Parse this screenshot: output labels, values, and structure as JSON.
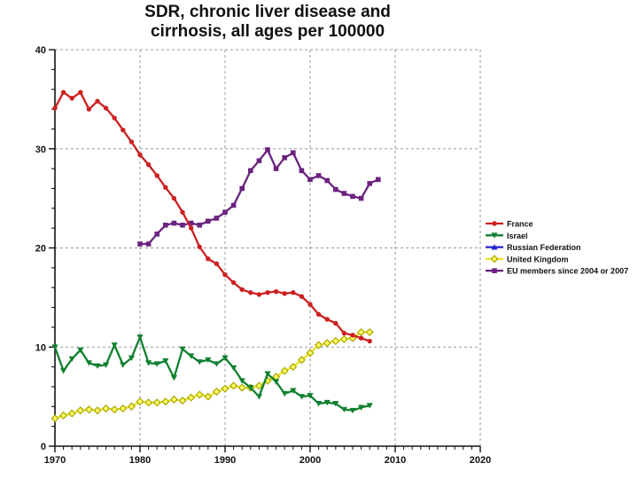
{
  "title": {
    "line1": "SDR, chronic liver disease and",
    "line2": "cirrhosis, all ages per 100000"
  },
  "chart_data": {
    "type": "line",
    "title": "SDR, chronic liver disease and cirrhosis, all ages per 100000",
    "xlabel": "",
    "ylabel": "",
    "xlim": [
      1970,
      2020
    ],
    "ylim": [
      0,
      40
    ],
    "x_ticks": [
      1970,
      1980,
      1990,
      2000,
      2010,
      2020
    ],
    "y_ticks": [
      0,
      10,
      20,
      30,
      40
    ],
    "x_minor_step": 1,
    "y_minor_step": 2,
    "grid": "dashed gray lines at every major tick, dashed top and right frame",
    "grid_color": "#999999",
    "axis_color": "#111111",
    "legend_position": "right-middle",
    "series": [
      {
        "name": "France",
        "color": "#cc2020",
        "marker": "circle",
        "z": 3,
        "start_year": 1970,
        "values": [
          34.1,
          35.7,
          35.1,
          35.7,
          34.0,
          34.8,
          34.1,
          33.1,
          31.9,
          30.7,
          29.4,
          28.4,
          27.3,
          26.1,
          25.0,
          23.6,
          22.0,
          20.1,
          18.9,
          18.4,
          17.3,
          16.5,
          15.8,
          15.5,
          15.3,
          15.5,
          15.6,
          15.4,
          15.5,
          15.1,
          14.3,
          13.3,
          12.8,
          12.4,
          11.4,
          11.2,
          10.9,
          10.6
        ]
      },
      {
        "name": "Israel",
        "color": "#108030",
        "marker": "triangle-down",
        "z": 4,
        "start_year": 1970,
        "values": [
          10.0,
          7.6,
          8.8,
          9.7,
          8.4,
          8.1,
          8.2,
          10.2,
          8.2,
          8.9,
          11.0,
          8.4,
          8.3,
          8.6,
          6.9,
          9.8,
          9.1,
          8.5,
          8.7,
          8.3,
          8.9,
          7.9,
          6.6,
          5.9,
          5.0,
          7.3,
          6.5,
          5.3,
          5.6,
          5.0,
          5.1,
          4.3,
          4.4,
          4.3,
          3.7,
          3.6,
          3.9,
          4.1
        ]
      },
      {
        "name": "Russian Federation",
        "color": "#2222cc",
        "marker": "triangle-up",
        "z": 0,
        "start_year": null,
        "values": []
      },
      {
        "name": "United Kingdom",
        "color": "#e8e520",
        "marker": "diamond-open",
        "marker_fill": "#ffff66",
        "marker_stroke": "#a9a400",
        "z": 1,
        "start_year": 1970,
        "values": [
          2.8,
          3.1,
          3.3,
          3.6,
          3.7,
          3.6,
          3.8,
          3.7,
          3.8,
          4.0,
          4.5,
          4.4,
          4.4,
          4.5,
          4.7,
          4.6,
          4.9,
          5.2,
          5.0,
          5.5,
          5.8,
          6.1,
          5.9,
          5.9,
          6.1,
          6.6,
          7.0,
          7.6,
          8.0,
          8.7,
          9.4,
          10.2,
          10.4,
          10.6,
          10.8,
          10.9,
          11.5,
          11.5
        ]
      },
      {
        "name": "EU members since 2004 or 2007",
        "color": "#6b2380",
        "marker": "square",
        "z": 2,
        "start_year": 1980,
        "values": [
          20.4,
          20.4,
          21.4,
          22.3,
          22.5,
          22.3,
          22.5,
          22.3,
          22.7,
          23.0,
          23.6,
          24.3,
          26.0,
          27.8,
          28.8,
          29.9,
          28.0,
          29.1,
          29.6,
          27.8,
          26.9,
          27.3,
          26.8,
          25.9,
          25.5,
          25.2,
          25.0,
          26.5,
          26.9
        ]
      }
    ]
  }
}
